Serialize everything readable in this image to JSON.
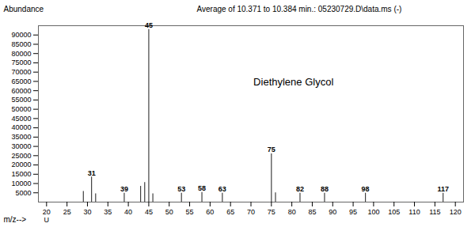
{
  "chart_data": {
    "type": "bar",
    "title": "Average of 10.371 to 10.384 min.: 05230729.D\\data.ms (-)",
    "xlabel": "m/z-->",
    "ylabel": "Abundance",
    "x": [
      29,
      31,
      32,
      39,
      43,
      44,
      45,
      46,
      53,
      58,
      63,
      75,
      76,
      82,
      88,
      98,
      117
    ],
    "values": [
      5800,
      13500,
      4500,
      4800,
      8500,
      10500,
      93000,
      4500,
      4800,
      5200,
      4800,
      26000,
      5000,
      4800,
      4800,
      4800,
      4800
    ],
    "peak_labels": [
      null,
      "31",
      null,
      "39",
      null,
      null,
      "45",
      null,
      "53",
      "58",
      "63",
      "75",
      null,
      "82",
      "88",
      "98",
      "117"
    ],
    "color": "#404040",
    "xlim": [
      18,
      122
    ],
    "ylim": [
      0,
      95000
    ],
    "xticks": [
      20,
      25,
      30,
      35,
      40,
      45,
      50,
      55,
      60,
      65,
      70,
      75,
      80,
      85,
      90,
      95,
      100,
      105,
      110,
      115,
      120
    ],
    "yticks": [
      5000,
      10000,
      15000,
      20000,
      25000,
      30000,
      35000,
      40000,
      45000,
      50000,
      55000,
      60000,
      65000,
      70000,
      75000,
      80000,
      85000,
      90000
    ],
    "grid": false,
    "annotations": [
      {
        "text": "Diethylene Glycol"
      },
      {
        "text": "U",
        "x": 20,
        "y": 0
      }
    ]
  }
}
